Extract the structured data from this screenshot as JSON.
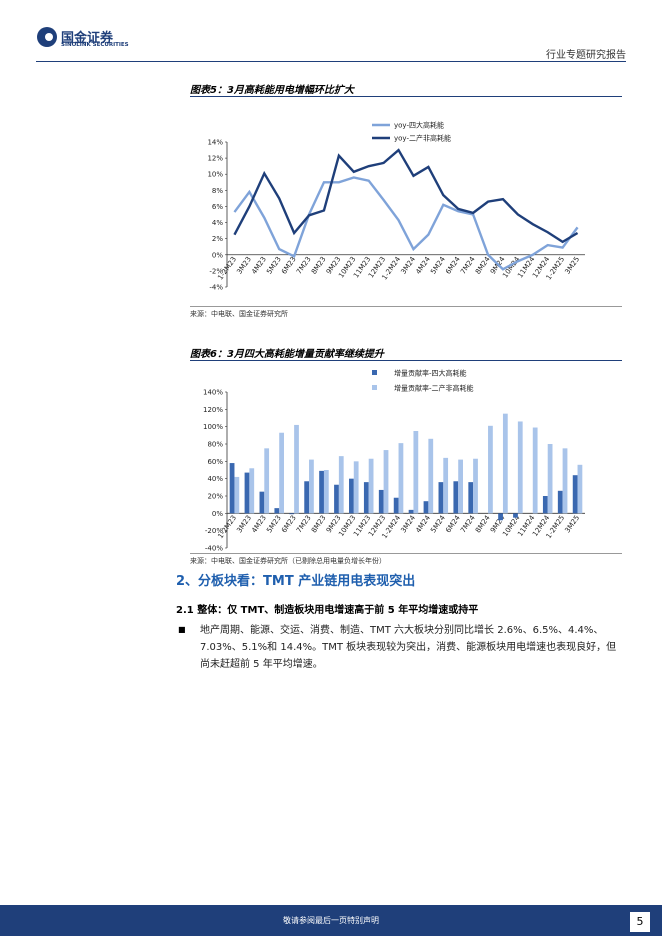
{
  "header": {
    "logo_cn": "国金证券",
    "logo_en": "SINOLINK SECURITIES",
    "report_type": "行业专题研究报告"
  },
  "figures": [
    {
      "title": "图表5：3月高耗能用电增幅环比扩大",
      "source": "来源：中电联、国金证券研究所"
    },
    {
      "title": "图表6：3月四大高耗能增量贡献率继续提升",
      "source": "来源：中电联、国金证券研究所（已剔除总用电量负增长年份）"
    }
  ],
  "chart_data": [
    {
      "type": "line",
      "categories": [
        "1-2M23",
        "3M23",
        "4M23",
        "5M23",
        "6M23",
        "7M23",
        "8M23",
        "9M23",
        "10M23",
        "11M23",
        "12M23",
        "1-2M24",
        "3M24",
        "4M24",
        "5M24",
        "6M24",
        "7M24",
        "8M24",
        "9M24",
        "10M24",
        "11M24",
        "12M24",
        "1-2M25",
        "3M25"
      ],
      "series": [
        {
          "name": "yoy-四大高耗能",
          "color": "#7fa3d9",
          "values": [
            5.3,
            7.8,
            4.6,
            0.7,
            -0.2,
            5.0,
            9.0,
            9.0,
            9.6,
            9.2,
            6.8,
            4.3,
            0.7,
            2.5,
            6.2,
            5.4,
            5.0,
            0,
            -1.8,
            -0.8,
            0.0,
            1.2,
            0.9,
            3.4
          ]
        },
        {
          "name": "yoy-二产非高耗能",
          "color": "#1f3f7a",
          "values": [
            2.5,
            6.0,
            10.1,
            7.0,
            2.7,
            4.9,
            5.5,
            12.3,
            10.3,
            11.0,
            11.4,
            13.0,
            9.8,
            10.9,
            7.4,
            5.7,
            5.2,
            6.6,
            6.9,
            5.0,
            3.8,
            2.8,
            1.6,
            2.7
          ]
        }
      ],
      "ylim": [
        -4,
        14
      ],
      "yticks": [
        {
          "value": -4,
          "label": "-4%"
        },
        {
          "value": -2,
          "label": "-2%"
        },
        {
          "value": 0,
          "label": "0%"
        },
        {
          "value": 2,
          "label": "2%"
        },
        {
          "value": 4,
          "label": "4%"
        },
        {
          "value": 6,
          "label": "6%"
        },
        {
          "value": 8,
          "label": "8%"
        },
        {
          "value": 10,
          "label": "10%"
        },
        {
          "value": 12,
          "label": "12%"
        },
        {
          "value": 14,
          "label": "14%"
        }
      ]
    },
    {
      "type": "bar",
      "categories": [
        "1-2M23",
        "3M23",
        "4M23",
        "5M23",
        "6M23",
        "7M23",
        "8M23",
        "9M23",
        "10M23",
        "11M23",
        "12M23",
        "1-2M24",
        "3M24",
        "4M24",
        "5M24",
        "6M24",
        "7M24",
        "8M24",
        "9M24",
        "10M24",
        "11M24",
        "12M24",
        "1-2M25",
        "3M25"
      ],
      "series": [
        {
          "name": "增量贡献率-四大高耗能",
          "color": "#3a68b0",
          "values": [
            58,
            47,
            25,
            6,
            -1,
            37,
            49,
            33,
            40,
            36,
            27,
            18,
            4,
            14,
            36,
            37,
            36,
            0,
            -8,
            -5,
            0,
            20,
            26,
            44
          ]
        },
        {
          "name": "增量贡献率-二产非高耗能",
          "color": "#a9c4ea",
          "values": [
            42,
            52,
            75,
            93,
            102,
            62,
            50,
            66,
            60,
            63,
            73,
            81,
            95,
            86,
            64,
            62,
            63,
            101,
            115,
            106,
            99,
            80,
            75,
            56
          ]
        }
      ],
      "ylim": [
        -40,
        140
      ],
      "yticks": [
        {
          "value": -40,
          "label": "-40%"
        },
        {
          "value": -20,
          "label": "-20%"
        },
        {
          "value": 0,
          "label": "0%"
        },
        {
          "value": 20,
          "label": "20%"
        },
        {
          "value": 40,
          "label": "40%"
        },
        {
          "value": 60,
          "label": "60%"
        },
        {
          "value": 80,
          "label": "80%"
        },
        {
          "value": 100,
          "label": "100%"
        },
        {
          "value": 120,
          "label": "120%"
        },
        {
          "value": 140,
          "label": "140%"
        }
      ]
    }
  ],
  "section": {
    "heading": "2、分板块看：TMT 产业链用电表现突出",
    "subheading": "2.1 整体：仅 TMT、制造板块用电增速高于前 5 年平均增速或持平",
    "bullet": "地产周期、能源、交运、消费、制造、TMT 六大板块分别同比增长 2.6%、6.5%、4.4%、7.03%、5.1%和 14.4%。TMT 板块表现较为突出，消费、能源板块用电增速也表现良好，但尚未赶超前 5 年平均增速。"
  },
  "footer": {
    "disclaimer": "敬请参阅最后一页特别声明",
    "page": "5"
  }
}
